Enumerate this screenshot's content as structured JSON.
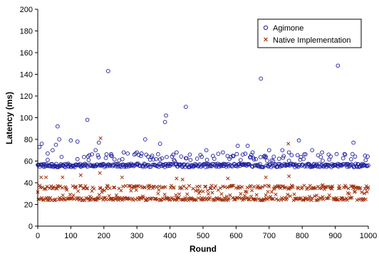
{
  "chart_data": {
    "type": "scatter",
    "title": "",
    "xlabel": "Round",
    "ylabel": "Latency (ms)",
    "xlim": [
      0,
      1000
    ],
    "ylim": [
      0,
      200
    ],
    "x_ticks": [
      "0",
      "100",
      "200",
      "300",
      "400",
      "500",
      "600",
      "700",
      "800",
      "900",
      "1000"
    ],
    "y_ticks": [
      "0",
      "20",
      "40",
      "60",
      "80",
      "100",
      "120",
      "140",
      "160",
      "180",
      "200"
    ],
    "grid": false,
    "legend_position": "top-right",
    "series": [
      {
        "name": "Agimone",
        "marker": "circle",
        "color": "#1f1f9e",
        "baseline": 56,
        "outliers": [
          {
            "x": 5,
            "y": 73
          },
          {
            "x": 12,
            "y": 76
          },
          {
            "x": 30,
            "y": 67
          },
          {
            "x": 45,
            "y": 70
          },
          {
            "x": 55,
            "y": 75
          },
          {
            "x": 60,
            "y": 92
          },
          {
            "x": 65,
            "y": 80
          },
          {
            "x": 100,
            "y": 79
          },
          {
            "x": 120,
            "y": 78
          },
          {
            "x": 150,
            "y": 98
          },
          {
            "x": 175,
            "y": 70
          },
          {
            "x": 185,
            "y": 77
          },
          {
            "x": 213,
            "y": 143
          },
          {
            "x": 222,
            "y": 65
          },
          {
            "x": 260,
            "y": 68
          },
          {
            "x": 300,
            "y": 68
          },
          {
            "x": 325,
            "y": 80
          },
          {
            "x": 370,
            "y": 76
          },
          {
            "x": 385,
            "y": 96
          },
          {
            "x": 388,
            "y": 102
          },
          {
            "x": 420,
            "y": 68
          },
          {
            "x": 448,
            "y": 110
          },
          {
            "x": 460,
            "y": 66
          },
          {
            "x": 510,
            "y": 70
          },
          {
            "x": 560,
            "y": 68
          },
          {
            "x": 605,
            "y": 74
          },
          {
            "x": 620,
            "y": 66
          },
          {
            "x": 635,
            "y": 74
          },
          {
            "x": 650,
            "y": 68
          },
          {
            "x": 675,
            "y": 136
          },
          {
            "x": 700,
            "y": 70
          },
          {
            "x": 740,
            "y": 70
          },
          {
            "x": 760,
            "y": 68
          },
          {
            "x": 790,
            "y": 79
          },
          {
            "x": 830,
            "y": 70
          },
          {
            "x": 860,
            "y": 68
          },
          {
            "x": 880,
            "y": 66
          },
          {
            "x": 908,
            "y": 148
          },
          {
            "x": 955,
            "y": 77
          },
          {
            "x": 990,
            "y": 65
          }
        ]
      },
      {
        "name": "Native Implementation",
        "marker": "x",
        "color": "#a0300a",
        "baseline_low": 25,
        "baseline_high": 36,
        "outliers": [
          {
            "x": 10,
            "y": 45
          },
          {
            "x": 25,
            "y": 45
          },
          {
            "x": 75,
            "y": 45
          },
          {
            "x": 130,
            "y": 47
          },
          {
            "x": 188,
            "y": 49
          },
          {
            "x": 190,
            "y": 81
          },
          {
            "x": 255,
            "y": 45
          },
          {
            "x": 420,
            "y": 44
          },
          {
            "x": 438,
            "y": 43
          },
          {
            "x": 575,
            "y": 44
          },
          {
            "x": 690,
            "y": 45
          },
          {
            "x": 758,
            "y": 76
          },
          {
            "x": 760,
            "y": 46
          },
          {
            "x": 862,
            "y": 38
          }
        ]
      }
    ]
  }
}
